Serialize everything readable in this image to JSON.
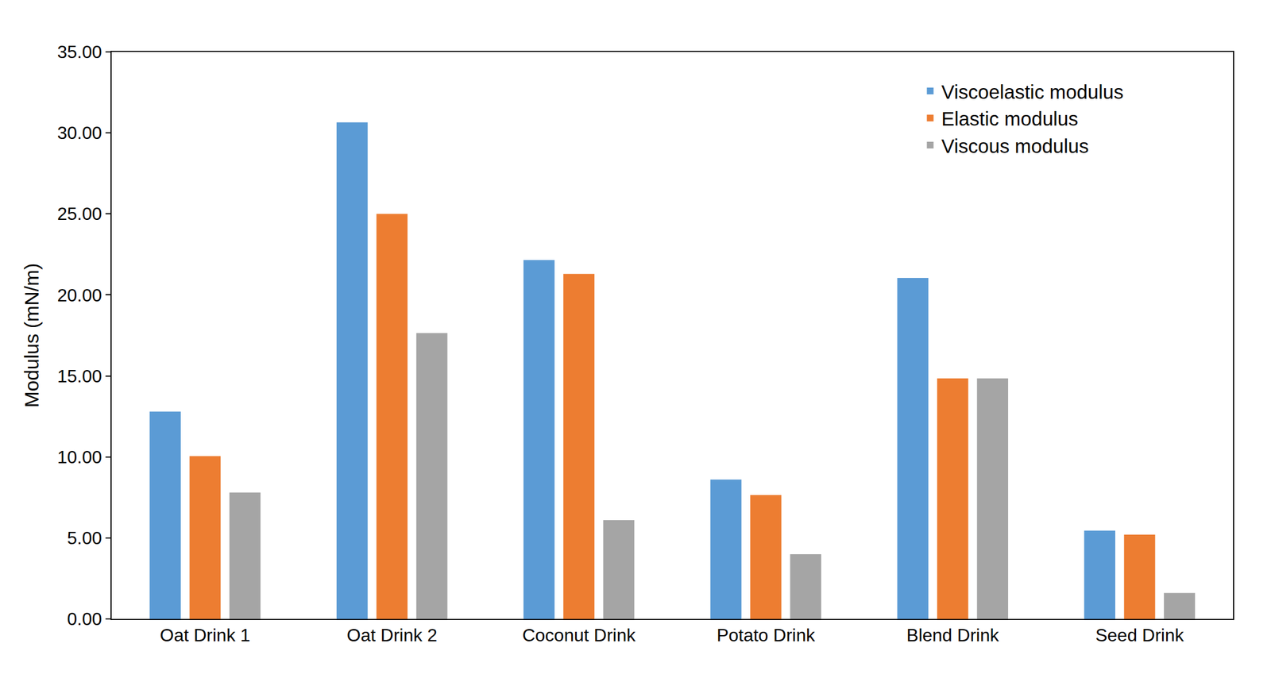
{
  "chart_data": {
    "type": "bar",
    "y_label": "Modulus (mN/m)",
    "categories": [
      "Oat Drink 1",
      "Oat Drink 2",
      "Coconut Drink",
      "Potato Drink",
      "Blend Drink",
      "Seed Drink"
    ],
    "series": [
      {
        "name": "Viscoelastic modulus",
        "color": "#5B9BD5",
        "values": [
          12.8,
          30.65,
          22.15,
          8.6,
          21.05,
          5.45
        ]
      },
      {
        "name": "Elastic modulus",
        "color": "#ED7D31",
        "values": [
          10.05,
          25.0,
          21.3,
          7.65,
          14.85,
          5.2
        ]
      },
      {
        "name": "Viscous modulus",
        "color": "#A5A5A5",
        "values": [
          7.8,
          17.65,
          6.1,
          4.0,
          14.85,
          1.6
        ]
      }
    ],
    "ylim": [
      0,
      35
    ],
    "yticks": [
      {
        "value": 0,
        "label": "0.00"
      },
      {
        "value": 5,
        "label": "5.00"
      },
      {
        "value": 10,
        "label": "10.00"
      },
      {
        "value": 15,
        "label": "15.00"
      },
      {
        "value": 20,
        "label": "20.00"
      },
      {
        "value": 25,
        "label": "25.00"
      },
      {
        "value": 30,
        "label": "30.00"
      },
      {
        "value": 35,
        "label": "35.00"
      }
    ],
    "grid": false,
    "legend": "top-right"
  }
}
